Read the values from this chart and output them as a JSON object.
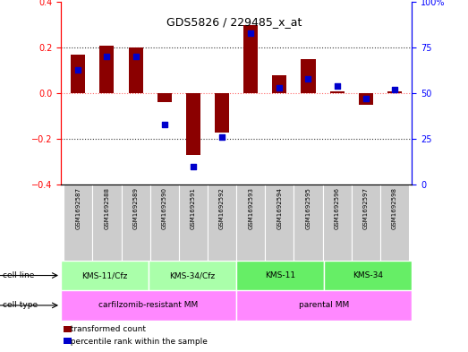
{
  "title": "GDS5826 / 229485_x_at",
  "samples": [
    "GSM1692587",
    "GSM1692588",
    "GSM1692589",
    "GSM1692590",
    "GSM1692591",
    "GSM1692592",
    "GSM1692593",
    "GSM1692594",
    "GSM1692595",
    "GSM1692596",
    "GSM1692597",
    "GSM1692598"
  ],
  "transformed_count": [
    0.17,
    0.21,
    0.2,
    -0.04,
    -0.27,
    -0.17,
    0.3,
    0.08,
    0.15,
    0.01,
    -0.05,
    0.01
  ],
  "percentile_rank": [
    63,
    70,
    70,
    33,
    10,
    26,
    83,
    53,
    58,
    54,
    47,
    52
  ],
  "cell_line_groups": [
    {
      "label": "KMS-11/Cfz",
      "start": 0,
      "end": 3
    },
    {
      "label": "KMS-34/Cfz",
      "start": 3,
      "end": 6
    },
    {
      "label": "KMS-11",
      "start": 6,
      "end": 9
    },
    {
      "label": "KMS-34",
      "start": 9,
      "end": 12
    }
  ],
  "cell_line_colors": [
    "#AAFFAA",
    "#AAFFAA",
    "#66EE66",
    "#66EE66"
  ],
  "cell_type_groups": [
    {
      "label": "carfilzomib-resistant MM",
      "start": 0,
      "end": 6
    },
    {
      "label": "parental MM",
      "start": 6,
      "end": 12
    }
  ],
  "cell_type_color": "#FF88FF",
  "bar_color": "#8B0000",
  "dot_color": "#0000CC",
  "ylim_left": [
    -0.4,
    0.4
  ],
  "ylim_right": [
    0,
    100
  ],
  "yticks_left": [
    -0.4,
    -0.2,
    0.0,
    0.2,
    0.4
  ],
  "yticks_right": [
    0,
    25,
    50,
    75,
    100
  ],
  "ytick_labels_right": [
    "0",
    "25",
    "50",
    "75",
    "100%"
  ],
  "hlines_dotted": [
    -0.2,
    0.2
  ],
  "hline_zero_color": "#FF6666",
  "hline_dotted_color": "#333333",
  "sample_bg_color": "#CCCCCC",
  "legend_red_label": "transformed count",
  "legend_blue_label": "percentile rank within the sample",
  "cell_line_row_label": "cell line",
  "cell_type_row_label": "cell type"
}
